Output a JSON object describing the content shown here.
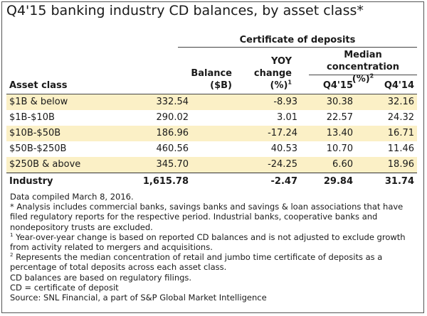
{
  "title": "Q4'15 banking industry CD balances, by asset class*",
  "group_header": "Certificate of deposits",
  "headers": {
    "asset_class": "Asset class",
    "balance_l1": "Balance",
    "balance_l2": "($B)",
    "yoy_l1": "YOY",
    "yoy_l2": "change",
    "yoy_l3": "(%)",
    "yoy_sup": "1",
    "median_l1": "Median concentration",
    "median_l2": "(%)",
    "median_sup": "2",
    "q415": "Q4'15",
    "q414": "Q4'14"
  },
  "rows": [
    {
      "label": "$1B & below",
      "balance": "332.54",
      "yoy": "-8.93",
      "q415": "30.38",
      "q414": "32.16"
    },
    {
      "label": "$1B-$10B",
      "balance": "290.02",
      "yoy": "3.01",
      "q415": "22.57",
      "q414": "24.32"
    },
    {
      "label": "$10B-$50B",
      "balance": "186.96",
      "yoy": "-17.24",
      "q415": "13.40",
      "q414": "16.71"
    },
    {
      "label": "$50B-$250B",
      "balance": "460.56",
      "yoy": "40.53",
      "q415": "10.70",
      "q414": "11.46"
    },
    {
      "label": "$250B & above",
      "balance": "345.70",
      "yoy": "-24.25",
      "q415": "6.60",
      "q414": "18.96"
    }
  ],
  "total": {
    "label": "Industry",
    "balance": "1,615.78",
    "yoy": "-2.47",
    "q415": "29.84",
    "q414": "31.74"
  },
  "notes": {
    "compiled": "Data compiled March 8, 2016.",
    "n_star": "* Analysis includes commercial banks, savings banks and savings & loan associations that have filed regulatory reports for the respective period. Industrial banks, cooperative banks and nondepository trusts are excluded.",
    "n1_sup": "1",
    "n1": " Year-over-year change is based on reported CD balances and is not adjusted to exclude growth from activity related to mergers and acquisitions.",
    "n2_sup": "2",
    "n2": " Represents the median concentration of retail and jumbo time certificate of deposits as a percentage of total deposits across each asset class.",
    "cd_reg": "CD balances are based on regulatory filings.",
    "cd_def": "CD = certificate of deposit",
    "source": "Source: SNL Financial, a part of S&P Global Market Intelligence"
  },
  "colors": {
    "shade": "#fbf0c6",
    "border": "#555555"
  }
}
